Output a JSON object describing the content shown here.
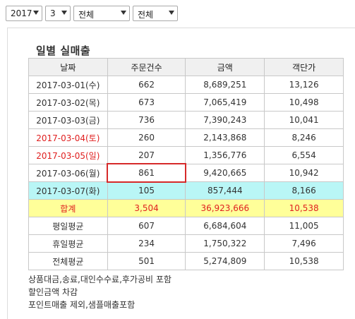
{
  "filters": {
    "year": "2017",
    "month": "3",
    "category1": "전체",
    "category2": "전체"
  },
  "title": "일별 실매출",
  "table": {
    "headers": [
      "날짜",
      "주문건수",
      "금액",
      "객단가"
    ],
    "rows": [
      {
        "date": "2017-03-01(수)",
        "orders": "662",
        "amount": "8,689,251",
        "avg": "13,126"
      },
      {
        "date": "2017-03-02(목)",
        "orders": "673",
        "amount": "7,065,419",
        "avg": "10,498"
      },
      {
        "date": "2017-03-03(금)",
        "orders": "736",
        "amount": "7,390,243",
        "avg": "10,041"
      },
      {
        "date": "2017-03-04(토)",
        "orders": "260",
        "amount": "2,143,868",
        "avg": "8,246"
      },
      {
        "date": "2017-03-05(일)",
        "orders": "207",
        "amount": "1,356,776",
        "avg": "6,554"
      },
      {
        "date": "2017-03-06(월)",
        "orders": "861",
        "amount": "9,420,665",
        "avg": "10,942"
      },
      {
        "date": "2017-03-07(화)",
        "orders": "105",
        "amount": "857,444",
        "avg": "8,166"
      }
    ],
    "total": {
      "label": "합계",
      "orders": "3,504",
      "amount": "36,923,666",
      "avg": "10,538"
    },
    "summaries": [
      {
        "label": "평일평균",
        "orders": "607",
        "amount": "6,684,604",
        "avg": "11,005"
      },
      {
        "label": "휴일평균",
        "orders": "234",
        "amount": "1,750,322",
        "avg": "7,496"
      },
      {
        "label": "전체평균",
        "orders": "501",
        "amount": "5,274,809",
        "avg": "10,538"
      }
    ]
  },
  "notes": [
    "상품대금,송료,대인수수료,후가공비 포함",
    "할인금액 차감",
    "포인트매출 제외,샘플매출포함"
  ],
  "colors": {
    "weekend_text": "#e02020",
    "today_row": "#b9f6f6",
    "total_row": "#ffff99",
    "highlight_box": "#d62a2a"
  }
}
